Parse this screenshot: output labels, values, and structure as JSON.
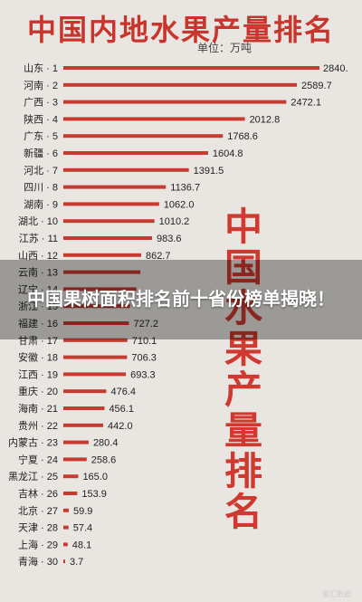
{
  "chart_data": {
    "type": "bar",
    "orientation": "horizontal",
    "title": "中国内地水果产量排名",
    "unit_label": "单位：万吨",
    "categories": [
      "山东 · 1",
      "河南 · 2",
      "广西 · 3",
      "陕西 · 4",
      "广东 · 5",
      "新疆 · 6",
      "河北 · 7",
      "四川 · 8",
      "湖南 · 9",
      "湖北 · 10",
      "江苏 · 11",
      "山西 · 12",
      "云南 · 13",
      "辽宁 · 14",
      "浙江 · 15",
      "福建 · 16",
      "甘肃 · 17",
      "安徽 · 18",
      "江西 · 19",
      "重庆 · 20",
      "海南 · 21",
      "贵州 · 22",
      "内蒙古 · 23",
      "宁夏 · 24",
      "黑龙江 · 25",
      "吉林 · 26",
      "北京 · 27",
      "天津 · 28",
      "上海 · 29",
      "青海 · 30"
    ],
    "values": [
      2840,
      2589.7,
      2472.1,
      2012.8,
      1768.6,
      1604.8,
      1391.5,
      1136.7,
      1062.0,
      1010.2,
      983.6,
      862.7,
      854,
      810,
      741,
      727.2,
      710.1,
      706.3,
      693.3,
      476.4,
      456.1,
      442.0,
      280.4,
      258.6,
      165.0,
      153.9,
      59.9,
      57.4,
      48.1,
      3.7
    ],
    "value_labels": [
      "2840.",
      "2589.7",
      "2472.1",
      "2012.8",
      "1768.6",
      "1604.8",
      "1391.5",
      "1136.7",
      "1062.0",
      "1010.2",
      "983.6",
      "862.7",
      "",
      "",
      "",
      "727.2",
      "710.1",
      "706.3",
      "693.3",
      "476.4",
      "456.1",
      "442.0",
      "280.4",
      "258.6",
      "165.0",
      "153.9",
      "59.9",
      "57.4",
      "48.1",
      "3.7"
    ],
    "bar_color": "#c73a30"
  },
  "side_text": "中国水果产量排名",
  "overlay": {
    "headline": "中国果树面积排名前十省份榜单揭晓！"
  },
  "watermark": "聚汇数据"
}
